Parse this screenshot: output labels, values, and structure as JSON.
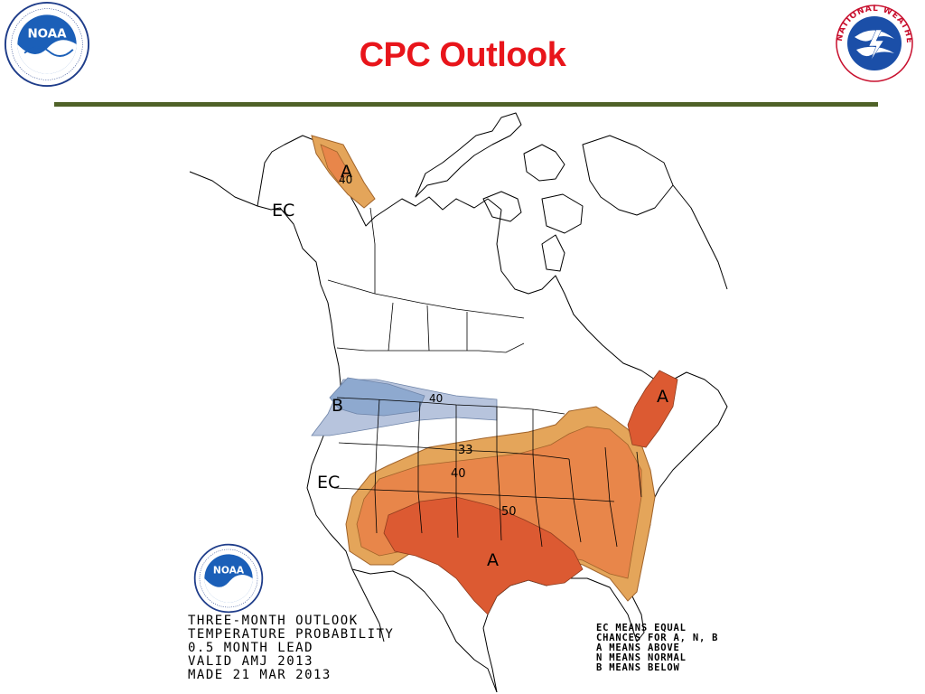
{
  "slide": {
    "title": "CPC Outlook"
  },
  "logos": {
    "noaa_wordmark": "NOAA",
    "nws_ring_text": "NATIONAL WEATHER SERVICE",
    "noaa_ring_text": "NATIONAL OCEANIC AND ATMOSPHERIC ADMINISTRATION · U.S. DEPARTMENT OF COMMERCE"
  },
  "map": {
    "labels": {
      "ec_north": "EC",
      "ec_west": "EC",
      "a_alaska": "A",
      "a_northeast": "A",
      "a_south": "A",
      "b_northwest": "B",
      "c40_alaska": "40",
      "c40_nw": "40",
      "c33": "33",
      "c40_central": "40",
      "c50": "50"
    },
    "colors": {
      "above_33": "#e4a55a",
      "above_40": "#e8864a",
      "above_50": "#dc5a32",
      "below_33": "#b7c4dd",
      "below_40": "#8ea9cf",
      "boundary": "#000000"
    }
  },
  "caption": {
    "line1": "THREE-MONTH OUTLOOK",
    "line2": "TEMPERATURE PROBABILITY",
    "line3": "0.5 MONTH LEAD",
    "line4": "VALID AMJ 2013",
    "line5": "MADE 21 MAR 2013"
  },
  "legend": {
    "line1": "EC MEANS EQUAL",
    "line2": "CHANCES FOR A, N, B",
    "line3": "A MEANS ABOVE",
    "line4": "N MEANS NORMAL",
    "line5": "B MEANS BELOW"
  }
}
